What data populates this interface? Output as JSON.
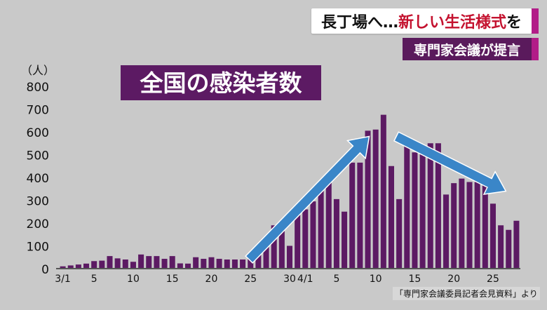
{
  "header": {
    "title_part1": "長丁場へ…",
    "title_accent": "新しい生活様式",
    "title_part2": "を",
    "subtitle": "専門家会議が提言"
  },
  "source_note": "「専門家会議委員記者会見資料」より",
  "colors": {
    "bar": "#5c1a63",
    "arrow": "#3a86c8",
    "title_box": "#5c1a63",
    "background": "#c9c9c9",
    "accent_text": "#c4122f",
    "accent_bar": "#b21d88"
  },
  "chart_data": {
    "type": "bar",
    "title": "全国の感染者数",
    "ylabel": "（人）",
    "ylim": [
      0,
      800
    ],
    "yticks": [
      0,
      100,
      200,
      300,
      400,
      500,
      600,
      700,
      800
    ],
    "xtick_labels": [
      {
        "index": 0,
        "label": "3/1"
      },
      {
        "index": 4,
        "label": "5"
      },
      {
        "index": 9,
        "label": "10"
      },
      {
        "index": 14,
        "label": "15"
      },
      {
        "index": 19,
        "label": "20"
      },
      {
        "index": 24,
        "label": "25"
      },
      {
        "index": 29,
        "label": "30"
      },
      {
        "index": 31,
        "label": "4/1"
      },
      {
        "index": 35,
        "label": "5"
      },
      {
        "index": 40,
        "label": "10"
      },
      {
        "index": 45,
        "label": "15"
      },
      {
        "index": 50,
        "label": "20"
      },
      {
        "index": 55,
        "label": "25"
      }
    ],
    "categories": [
      "3/1",
      "3/2",
      "3/3",
      "3/4",
      "3/5",
      "3/6",
      "3/7",
      "3/8",
      "3/9",
      "3/10",
      "3/11",
      "3/12",
      "3/13",
      "3/14",
      "3/15",
      "3/16",
      "3/17",
      "3/18",
      "3/19",
      "3/20",
      "3/21",
      "3/22",
      "3/23",
      "3/24",
      "3/25",
      "3/26",
      "3/27",
      "3/28",
      "3/29",
      "3/30",
      "3/31",
      "4/1",
      "4/2",
      "4/3",
      "4/4",
      "4/5",
      "4/6",
      "4/7",
      "4/8",
      "4/9",
      "4/10",
      "4/11",
      "4/12",
      "4/13",
      "4/14",
      "4/15",
      "4/16",
      "4/17",
      "4/18",
      "4/19",
      "4/20",
      "4/21",
      "4/22",
      "4/23",
      "4/24",
      "4/25",
      "4/26",
      "4/27",
      "4/28"
    ],
    "values": [
      10,
      14,
      18,
      22,
      33,
      35,
      55,
      45,
      40,
      30,
      62,
      55,
      55,
      43,
      55,
      23,
      22,
      50,
      43,
      50,
      43,
      40,
      40,
      40,
      60,
      95,
      120,
      190,
      165,
      100,
      255,
      260,
      295,
      345,
      380,
      305,
      250,
      465,
      465,
      605,
      610,
      675,
      450,
      305,
      560,
      510,
      535,
      550,
      550,
      325,
      375,
      395,
      380,
      380,
      365,
      285,
      190,
      170,
      210
    ],
    "annotations": [
      {
        "type": "arrow",
        "direction": "up",
        "from": "3/25",
        "to": "4/9"
      },
      {
        "type": "arrow",
        "direction": "down",
        "from": "4/13",
        "to": "4/27"
      }
    ]
  }
}
